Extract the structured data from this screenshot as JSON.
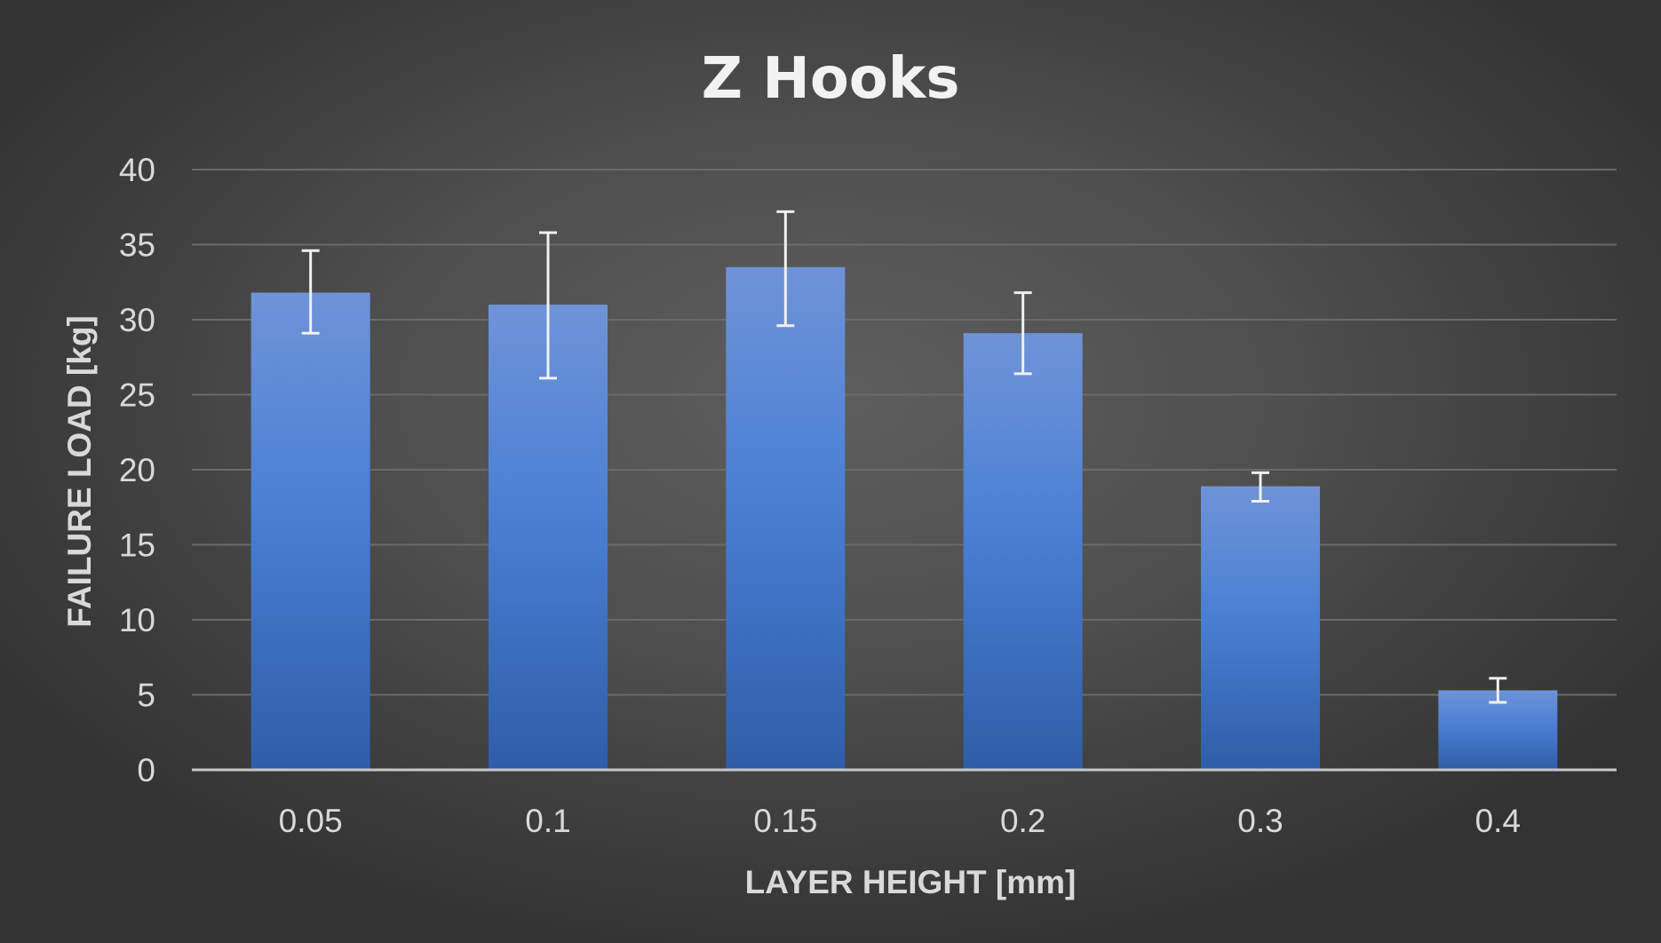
{
  "chart_data": {
    "type": "bar",
    "title": "Z Hooks",
    "xlabel": "LAYER HEIGHT [mm]",
    "ylabel": "FAILURE LOAD [kg]",
    "categories": [
      "0.05",
      "0.1",
      "0.15",
      "0.2",
      "0.3",
      "0.4"
    ],
    "values": [
      31.8,
      31.0,
      33.5,
      29.1,
      18.9,
      5.3
    ],
    "error_low": [
      29.1,
      26.1,
      29.6,
      26.4,
      17.9,
      4.5
    ],
    "error_high": [
      34.6,
      35.8,
      37.2,
      31.8,
      19.8,
      6.1
    ],
    "ylim": [
      0,
      40
    ],
    "yticks": [
      "0",
      "5",
      "10",
      "15",
      "20",
      "25",
      "30",
      "35",
      "40"
    ],
    "grid": true,
    "legend": "none",
    "colors": {
      "bar_top": "#6f93d8",
      "bar_mid": "#4a7fd4",
      "bar_bottom": "#2f5da8",
      "error_bar": "#f0f0f0",
      "gridline": "#6a6a6a",
      "axis": "#c8c8c8",
      "text": "#d9d9d9",
      "title": "#f2f2f2"
    }
  }
}
